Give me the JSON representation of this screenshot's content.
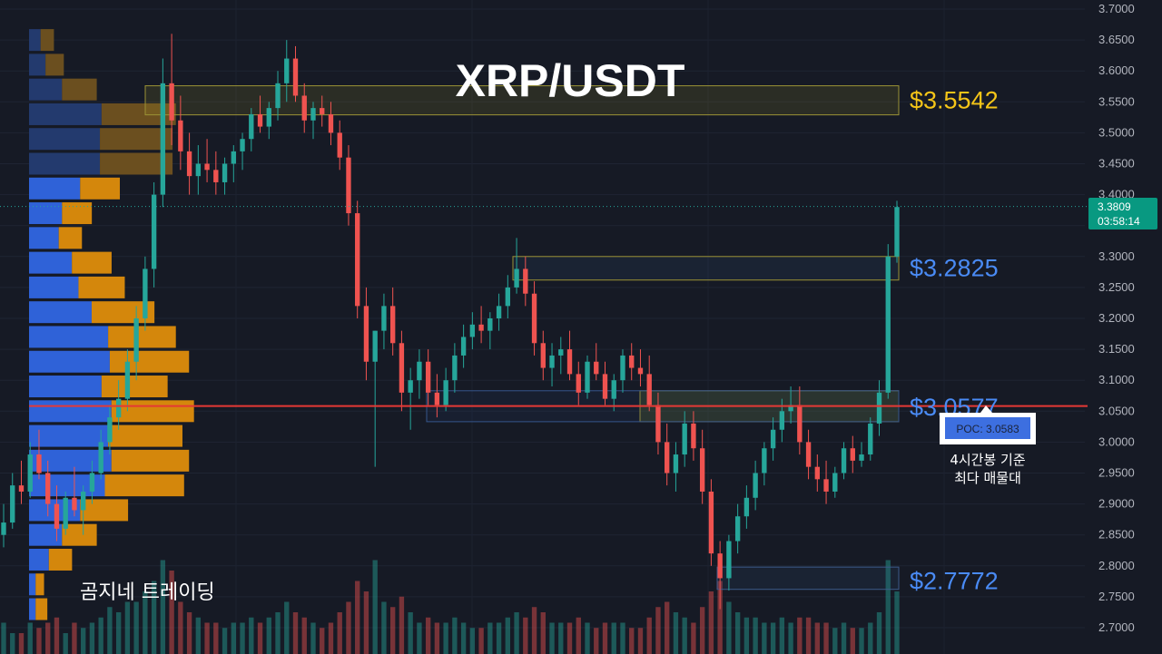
{
  "chart_data": {
    "type": "candlestick",
    "title": "XRP/USDT",
    "watermark": "곰지네 트레이딩",
    "y_axis": {
      "min": 2.7,
      "max": 3.7,
      "ticks": [
        "3.7000",
        "3.6500",
        "3.6000",
        "3.5500",
        "3.5000",
        "3.4500",
        "3.4000",
        "3.3500",
        "3.3000",
        "3.2500",
        "3.2000",
        "3.1500",
        "3.1000",
        "3.0500",
        "3.0000",
        "2.9500",
        "2.9000",
        "2.8500",
        "2.8000",
        "2.7500",
        "2.7000"
      ]
    },
    "current_price": {
      "value": "3.3809",
      "countdown": "03:58:14",
      "color": "#089981"
    },
    "levels": [
      {
        "label": "$3.5542",
        "value": 3.5542,
        "color": "#f5c518",
        "zone": [
          3.529,
          3.576
        ]
      },
      {
        "label": "$3.2825",
        "value": 3.2825,
        "color": "#4a8bf5",
        "zone": [
          3.262,
          3.3
        ]
      },
      {
        "label": "$3.0577",
        "value": 3.0577,
        "color": "#4a8bf5",
        "zone": [
          3.033,
          3.083
        ]
      },
      {
        "label": "$2.7772",
        "value": 2.7772,
        "color": "#4a8bf5",
        "zone": [
          2.762,
          2.798
        ]
      }
    ],
    "secondary_zone": {
      "value_range": [
        3.033,
        3.083
      ]
    },
    "poc": {
      "label": "POC: 3.0583",
      "value": 3.0583,
      "color": "#e53935",
      "note_line1": "4시간봉 기준",
      "note_line2": "최다 매물대"
    },
    "volume_profile": [
      {
        "price": 3.65,
        "buy": 0.07,
        "sell": 0.07
      },
      {
        "price": 3.61,
        "buy": 0.1,
        "sell": 0.1
      },
      {
        "price": 3.57,
        "buy": 0.2,
        "sell": 0.2
      },
      {
        "price": 3.53,
        "buy": 0.44,
        "sell": 0.44
      },
      {
        "price": 3.49,
        "buy": 0.43,
        "sell": 0.43
      },
      {
        "price": 3.45,
        "buy": 0.43,
        "sell": 0.43
      },
      {
        "price": 3.41,
        "buy": 0.31,
        "sell": 0.23
      },
      {
        "price": 3.37,
        "buy": 0.2,
        "sell": 0.17
      },
      {
        "price": 3.33,
        "buy": 0.18,
        "sell": 0.13
      },
      {
        "price": 3.29,
        "buy": 0.26,
        "sell": 0.23
      },
      {
        "price": 3.25,
        "buy": 0.3,
        "sell": 0.27
      },
      {
        "price": 3.21,
        "buy": 0.38,
        "sell": 0.37
      },
      {
        "price": 3.17,
        "buy": 0.48,
        "sell": 0.4
      },
      {
        "price": 3.13,
        "buy": 0.49,
        "sell": 0.47
      },
      {
        "price": 3.09,
        "buy": 0.44,
        "sell": 0.39
      },
      {
        "price": 3.05,
        "buy": 0.5,
        "sell": 0.49
      },
      {
        "price": 3.01,
        "buy": 0.48,
        "sell": 0.44
      },
      {
        "price": 2.97,
        "buy": 0.5,
        "sell": 0.46
      },
      {
        "price": 2.93,
        "buy": 0.46,
        "sell": 0.47
      },
      {
        "price": 2.89,
        "buy": 0.31,
        "sell": 0.28
      },
      {
        "price": 2.85,
        "buy": 0.2,
        "sell": 0.2
      },
      {
        "price": 2.81,
        "buy": 0.12,
        "sell": 0.13
      },
      {
        "price": 2.77,
        "buy": 0.04,
        "sell": 0.04
      },
      {
        "price": 2.73,
        "buy": 0.04,
        "sell": 0.06
      }
    ],
    "candles": [
      [
        2.85,
        2.9,
        2.83,
        2.87
      ],
      [
        2.87,
        2.95,
        2.86,
        2.93
      ],
      [
        2.93,
        2.97,
        2.9,
        2.92
      ],
      [
        2.92,
        3.0,
        2.91,
        2.98
      ],
      [
        2.98,
        3.02,
        2.94,
        2.95
      ],
      [
        2.95,
        2.97,
        2.88,
        2.9
      ],
      [
        2.9,
        2.93,
        2.84,
        2.86
      ],
      [
        2.86,
        2.92,
        2.85,
        2.91
      ],
      [
        2.91,
        2.96,
        2.88,
        2.89
      ],
      [
        2.89,
        2.93,
        2.85,
        2.92
      ],
      [
        2.92,
        2.97,
        2.9,
        2.95
      ],
      [
        2.95,
        3.02,
        2.94,
        3.0
      ],
      [
        3.0,
        3.06,
        2.98,
        3.04
      ],
      [
        3.04,
        3.1,
        3.02,
        3.07
      ],
      [
        3.07,
        3.15,
        3.05,
        3.13
      ],
      [
        3.13,
        3.22,
        3.1,
        3.2
      ],
      [
        3.2,
        3.3,
        3.18,
        3.28
      ],
      [
        3.28,
        3.42,
        3.25,
        3.4
      ],
      [
        3.4,
        3.62,
        3.38,
        3.58
      ],
      [
        3.58,
        3.66,
        3.48,
        3.52
      ],
      [
        3.52,
        3.56,
        3.44,
        3.47
      ],
      [
        3.47,
        3.5,
        3.4,
        3.43
      ],
      [
        3.43,
        3.48,
        3.4,
        3.45
      ],
      [
        3.45,
        3.49,
        3.42,
        3.44
      ],
      [
        3.44,
        3.47,
        3.4,
        3.42
      ],
      [
        3.42,
        3.46,
        3.4,
        3.45
      ],
      [
        3.45,
        3.48,
        3.42,
        3.47
      ],
      [
        3.47,
        3.5,
        3.44,
        3.49
      ],
      [
        3.49,
        3.54,
        3.47,
        3.53
      ],
      [
        3.53,
        3.56,
        3.5,
        3.51
      ],
      [
        3.51,
        3.55,
        3.49,
        3.54
      ],
      [
        3.54,
        3.6,
        3.52,
        3.58
      ],
      [
        3.58,
        3.65,
        3.55,
        3.62
      ],
      [
        3.62,
        3.64,
        3.55,
        3.56
      ],
      [
        3.56,
        3.58,
        3.5,
        3.52
      ],
      [
        3.52,
        3.55,
        3.49,
        3.54
      ],
      [
        3.54,
        3.56,
        3.51,
        3.53
      ],
      [
        3.53,
        3.55,
        3.48,
        3.5
      ],
      [
        3.5,
        3.52,
        3.44,
        3.46
      ],
      [
        3.46,
        3.48,
        3.35,
        3.37
      ],
      [
        3.37,
        3.39,
        3.2,
        3.22
      ],
      [
        3.22,
        3.25,
        3.1,
        3.13
      ],
      [
        3.13,
        3.18,
        2.96,
        3.18
      ],
      [
        3.18,
        3.24,
        3.15,
        3.22
      ],
      [
        3.22,
        3.25,
        3.14,
        3.16
      ],
      [
        3.16,
        3.18,
        3.05,
        3.08
      ],
      [
        3.08,
        3.12,
        3.02,
        3.1
      ],
      [
        3.1,
        3.15,
        3.07,
        3.13
      ],
      [
        3.13,
        3.15,
        3.06,
        3.08
      ],
      [
        3.08,
        3.11,
        3.04,
        3.06
      ],
      [
        3.06,
        3.12,
        3.05,
        3.1
      ],
      [
        3.1,
        3.16,
        3.08,
        3.14
      ],
      [
        3.14,
        3.19,
        3.12,
        3.17
      ],
      [
        3.17,
        3.21,
        3.15,
        3.19
      ],
      [
        3.19,
        3.22,
        3.16,
        3.18
      ],
      [
        3.18,
        3.21,
        3.15,
        3.2
      ],
      [
        3.2,
        3.24,
        3.18,
        3.22
      ],
      [
        3.22,
        3.27,
        3.2,
        3.25
      ],
      [
        3.25,
        3.33,
        3.24,
        3.28
      ],
      [
        3.28,
        3.3,
        3.22,
        3.24
      ],
      [
        3.24,
        3.26,
        3.14,
        3.16
      ],
      [
        3.16,
        3.18,
        3.1,
        3.12
      ],
      [
        3.12,
        3.16,
        3.09,
        3.14
      ],
      [
        3.14,
        3.17,
        3.11,
        3.15
      ],
      [
        3.15,
        3.18,
        3.1,
        3.11
      ],
      [
        3.11,
        3.13,
        3.06,
        3.08
      ],
      [
        3.08,
        3.14,
        3.07,
        3.13
      ],
      [
        3.13,
        3.16,
        3.1,
        3.11
      ],
      [
        3.11,
        3.13,
        3.06,
        3.07
      ],
      [
        3.07,
        3.11,
        3.05,
        3.1
      ],
      [
        3.1,
        3.15,
        3.08,
        3.14
      ],
      [
        3.14,
        3.16,
        3.1,
        3.12
      ],
      [
        3.12,
        3.15,
        3.09,
        3.11
      ],
      [
        3.11,
        3.14,
        3.05,
        3.06
      ],
      [
        3.06,
        3.08,
        2.98,
        3.0
      ],
      [
        3.0,
        3.03,
        2.93,
        2.95
      ],
      [
        2.95,
        3.0,
        2.92,
        2.98
      ],
      [
        2.98,
        3.05,
        2.96,
        3.03
      ],
      [
        3.03,
        3.05,
        2.97,
        2.99
      ],
      [
        2.99,
        3.02,
        2.9,
        2.92
      ],
      [
        2.92,
        2.94,
        2.8,
        2.82
      ],
      [
        2.82,
        2.84,
        2.73,
        2.78
      ],
      [
        2.78,
        2.85,
        2.76,
        2.84
      ],
      [
        2.84,
        2.9,
        2.82,
        2.88
      ],
      [
        2.88,
        2.93,
        2.86,
        2.91
      ],
      [
        2.91,
        2.97,
        2.89,
        2.95
      ],
      [
        2.95,
        3.0,
        2.93,
        2.99
      ],
      [
        2.99,
        3.04,
        2.97,
        3.02
      ],
      [
        3.02,
        3.07,
        3.0,
        3.05
      ],
      [
        3.05,
        3.09,
        3.03,
        3.06
      ],
      [
        3.06,
        3.09,
        2.98,
        3.0
      ],
      [
        3.0,
        3.02,
        2.94,
        2.96
      ],
      [
        2.96,
        2.98,
        2.92,
        2.94
      ],
      [
        2.94,
        2.97,
        2.9,
        2.92
      ],
      [
        2.92,
        2.96,
        2.91,
        2.95
      ],
      [
        2.95,
        3.0,
        2.94,
        2.99
      ],
      [
        2.99,
        3.01,
        2.95,
        2.97
      ],
      [
        2.97,
        3.0,
        2.96,
        2.98
      ],
      [
        2.98,
        3.04,
        2.97,
        3.03
      ],
      [
        3.03,
        3.1,
        3.01,
        3.08
      ],
      [
        3.08,
        3.32,
        3.07,
        3.3
      ],
      [
        3.3,
        3.39,
        3.29,
        3.38
      ]
    ],
    "volumes": [
      0.3,
      0.2,
      0.2,
      0.3,
      0.25,
      0.3,
      0.35,
      0.2,
      0.3,
      0.25,
      0.3,
      0.35,
      0.45,
      0.4,
      0.5,
      0.5,
      0.6,
      0.7,
      0.9,
      0.8,
      0.5,
      0.4,
      0.35,
      0.3,
      0.3,
      0.25,
      0.3,
      0.3,
      0.35,
      0.3,
      0.35,
      0.4,
      0.5,
      0.4,
      0.35,
      0.3,
      0.25,
      0.3,
      0.4,
      0.5,
      0.7,
      0.6,
      0.9,
      0.5,
      0.45,
      0.55,
      0.4,
      0.3,
      0.35,
      0.3,
      0.3,
      0.35,
      0.3,
      0.25,
      0.25,
      0.3,
      0.3,
      0.35,
      0.4,
      0.35,
      0.45,
      0.4,
      0.3,
      0.3,
      0.3,
      0.35,
      0.3,
      0.25,
      0.3,
      0.3,
      0.3,
      0.25,
      0.25,
      0.35,
      0.45,
      0.5,
      0.4,
      0.35,
      0.3,
      0.45,
      0.6,
      0.7,
      0.5,
      0.4,
      0.35,
      0.35,
      0.3,
      0.3,
      0.35,
      0.3,
      0.35,
      0.35,
      0.3,
      0.3,
      0.25,
      0.3,
      0.25,
      0.25,
      0.3,
      0.4,
      0.9,
      0.6
    ]
  }
}
